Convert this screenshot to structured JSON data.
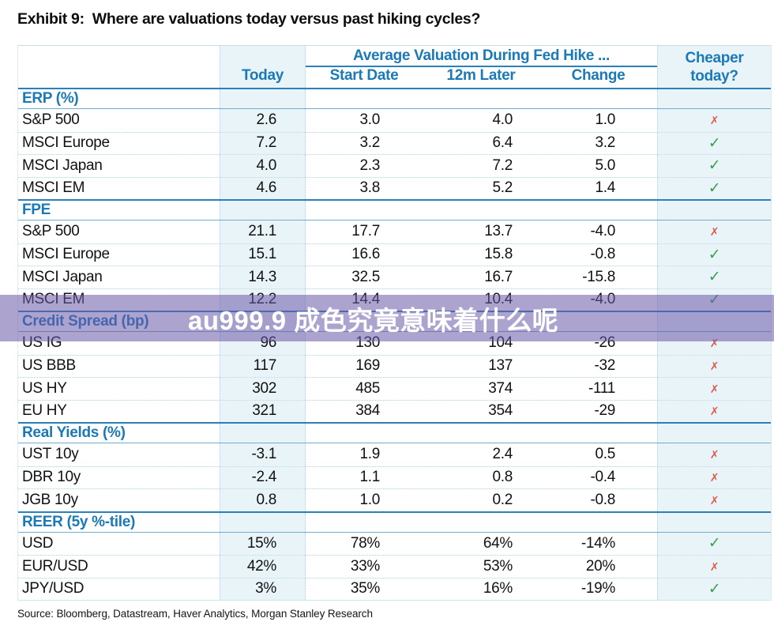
{
  "title": {
    "exhibit": "Exhibit 9:",
    "text": "Where are valuations today versus past hiking cycles?"
  },
  "header": {
    "col_today": "Today",
    "span_title": "Average Valuation During Fed Hike ...",
    "col_start": "Start Date",
    "col_12m": "12m Later",
    "col_change": "Change",
    "col_cheaper_line1": "Cheaper",
    "col_cheaper_line2": "today?"
  },
  "marks": {
    "yes": "✓",
    "no": "✗"
  },
  "sections": [
    {
      "label": "ERP (%)",
      "rows": [
        {
          "name": "S&P 500",
          "today": "2.6",
          "start": "3.0",
          "later": "4.0",
          "change": "1.0",
          "cheaper": "no"
        },
        {
          "name": "MSCI Europe",
          "today": "7.2",
          "start": "3.2",
          "later": "6.4",
          "change": "3.2",
          "cheaper": "yes"
        },
        {
          "name": "MSCI Japan",
          "today": "4.0",
          "start": "2.3",
          "later": "7.2",
          "change": "5.0",
          "cheaper": "yes"
        },
        {
          "name": "MSCI EM",
          "today": "4.6",
          "start": "3.8",
          "later": "5.2",
          "change": "1.4",
          "cheaper": "yes"
        }
      ]
    },
    {
      "label": "FPE",
      "rows": [
        {
          "name": "S&P 500",
          "today": "21.1",
          "start": "17.7",
          "later": "13.7",
          "change": "-4.0",
          "cheaper": "no"
        },
        {
          "name": "MSCI Europe",
          "today": "15.1",
          "start": "16.6",
          "later": "15.8",
          "change": "-0.8",
          "cheaper": "yes"
        },
        {
          "name": "MSCI Japan",
          "today": "14.3",
          "start": "32.5",
          "later": "16.7",
          "change": "-15.8",
          "cheaper": "yes"
        },
        {
          "name": "MSCI EM",
          "today": "12.2",
          "start": "14.4",
          "later": "10.4",
          "change": "-4.0",
          "cheaper": "yes"
        }
      ]
    },
    {
      "label": "Credit Spread (bp)",
      "rows": [
        {
          "name": "US IG",
          "today": "96",
          "start": "130",
          "later": "104",
          "change": "-26",
          "cheaper": "no"
        },
        {
          "name": "US BBB",
          "today": "117",
          "start": "169",
          "later": "137",
          "change": "-32",
          "cheaper": "no"
        },
        {
          "name": "US HY",
          "today": "302",
          "start": "485",
          "later": "374",
          "change": "-111",
          "cheaper": "no"
        },
        {
          "name": "EU HY",
          "today": "321",
          "start": "384",
          "later": "354",
          "change": "-29",
          "cheaper": "no"
        }
      ]
    },
    {
      "label": "Real Yields (%)",
      "rows": [
        {
          "name": "UST 10y",
          "today": "-3.1",
          "start": "1.9",
          "later": "2.4",
          "change": "0.5",
          "cheaper": "no"
        },
        {
          "name": "DBR 10y",
          "today": "-2.4",
          "start": "1.1",
          "later": "0.8",
          "change": "-0.4",
          "cheaper": "no"
        },
        {
          "name": "JGB 10y",
          "today": "0.8",
          "start": "1.0",
          "later": "0.2",
          "change": "-0.8",
          "cheaper": "no"
        }
      ]
    },
    {
      "label": "REER (5y %-tile)",
      "rows": [
        {
          "name": "USD",
          "today": "15%",
          "start": "78%",
          "later": "64%",
          "change": "-14%",
          "cheaper": "yes"
        },
        {
          "name": "EUR/USD",
          "today": "42%",
          "start": "33%",
          "later": "53%",
          "change": "20%",
          "cheaper": "no"
        },
        {
          "name": "JPY/USD",
          "today": "3%",
          "start": "35%",
          "later": "16%",
          "change": "-19%",
          "cheaper": "yes"
        }
      ]
    }
  ],
  "watermark": {
    "text": "au999.9 成色究竟意味着什么呢"
  },
  "source": "Source: Bloomberg, Datastream, Haver Analytics, Morgan Stanley Research",
  "colors": {
    "accent_blue": "#1a79b6",
    "rule_strong": "#2b80b8",
    "rule_light": "#6fadd1",
    "grid_dotted": "#a9d2e3",
    "shade_bg": "#e9f4f9",
    "check_green": "#3a9e4e",
    "cross_red": "#df5a4b",
    "watermark_purple": "rgba(106,88,168,0.55)",
    "text_black": "#111111"
  }
}
